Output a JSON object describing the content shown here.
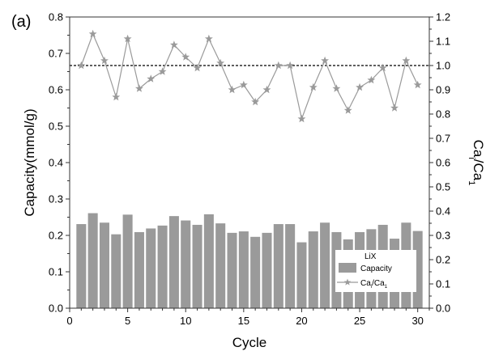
{
  "panel_label": "(a)",
  "chart_data": {
    "type": "bar+line",
    "xlabel": "Cycle",
    "ylabel_left": "Capacity(mmol/g)",
    "ylabel_right": "Cai/Ca1",
    "xlim": [
      0,
      31
    ],
    "ylim_left": [
      0.0,
      0.8
    ],
    "ylim_right": [
      0.0,
      1.2
    ],
    "x_ticks": [
      0,
      5,
      10,
      15,
      20,
      25,
      30
    ],
    "y_left_ticks": [
      "0.0",
      "0.1",
      "0.2",
      "0.3",
      "0.4",
      "0.5",
      "0.6",
      "0.7",
      "0.8"
    ],
    "y_right_ticks": [
      "0.0",
      "0.1",
      "0.2",
      "0.3",
      "0.4",
      "0.5",
      "0.6",
      "0.7",
      "0.8",
      "0.9",
      "1.0",
      "1.1",
      "1.2"
    ],
    "reference_line": 1.0,
    "cycles": [
      1,
      2,
      3,
      4,
      5,
      6,
      7,
      8,
      9,
      10,
      11,
      12,
      13,
      14,
      15,
      16,
      17,
      18,
      19,
      20,
      21,
      22,
      23,
      24,
      25,
      26,
      27,
      28,
      29,
      30
    ],
    "series": [
      {
        "name": "Capacity",
        "axis": "left",
        "kind": "bar",
        "color": "#9a9a9a",
        "values": [
          0.231,
          0.261,
          0.235,
          0.203,
          0.257,
          0.209,
          0.219,
          0.227,
          0.253,
          0.241,
          0.229,
          0.258,
          0.233,
          0.207,
          0.211,
          0.196,
          0.207,
          0.231,
          0.231,
          0.181,
          0.211,
          0.235,
          0.209,
          0.189,
          0.209,
          0.217,
          0.229,
          0.191,
          0.235,
          0.212
        ]
      },
      {
        "name": "Cai/Ca1",
        "axis": "right",
        "kind": "line",
        "marker": "star",
        "color": "#9a9a9a",
        "values": [
          1.0,
          1.13,
          1.02,
          0.87,
          1.11,
          0.905,
          0.945,
          0.975,
          1.085,
          1.035,
          0.99,
          1.11,
          1.01,
          0.9,
          0.92,
          0.85,
          0.9,
          1.0,
          1.0,
          0.78,
          0.91,
          1.02,
          0.905,
          0.815,
          0.91,
          0.94,
          0.99,
          0.825,
          1.02,
          0.92
        ]
      }
    ],
    "legend": {
      "title": "LiX",
      "entries": [
        {
          "label": "Capacity",
          "kind": "bar"
        },
        {
          "label": "Cai/Ca1",
          "kind": "line"
        }
      ],
      "placement": "bottom-right"
    }
  }
}
